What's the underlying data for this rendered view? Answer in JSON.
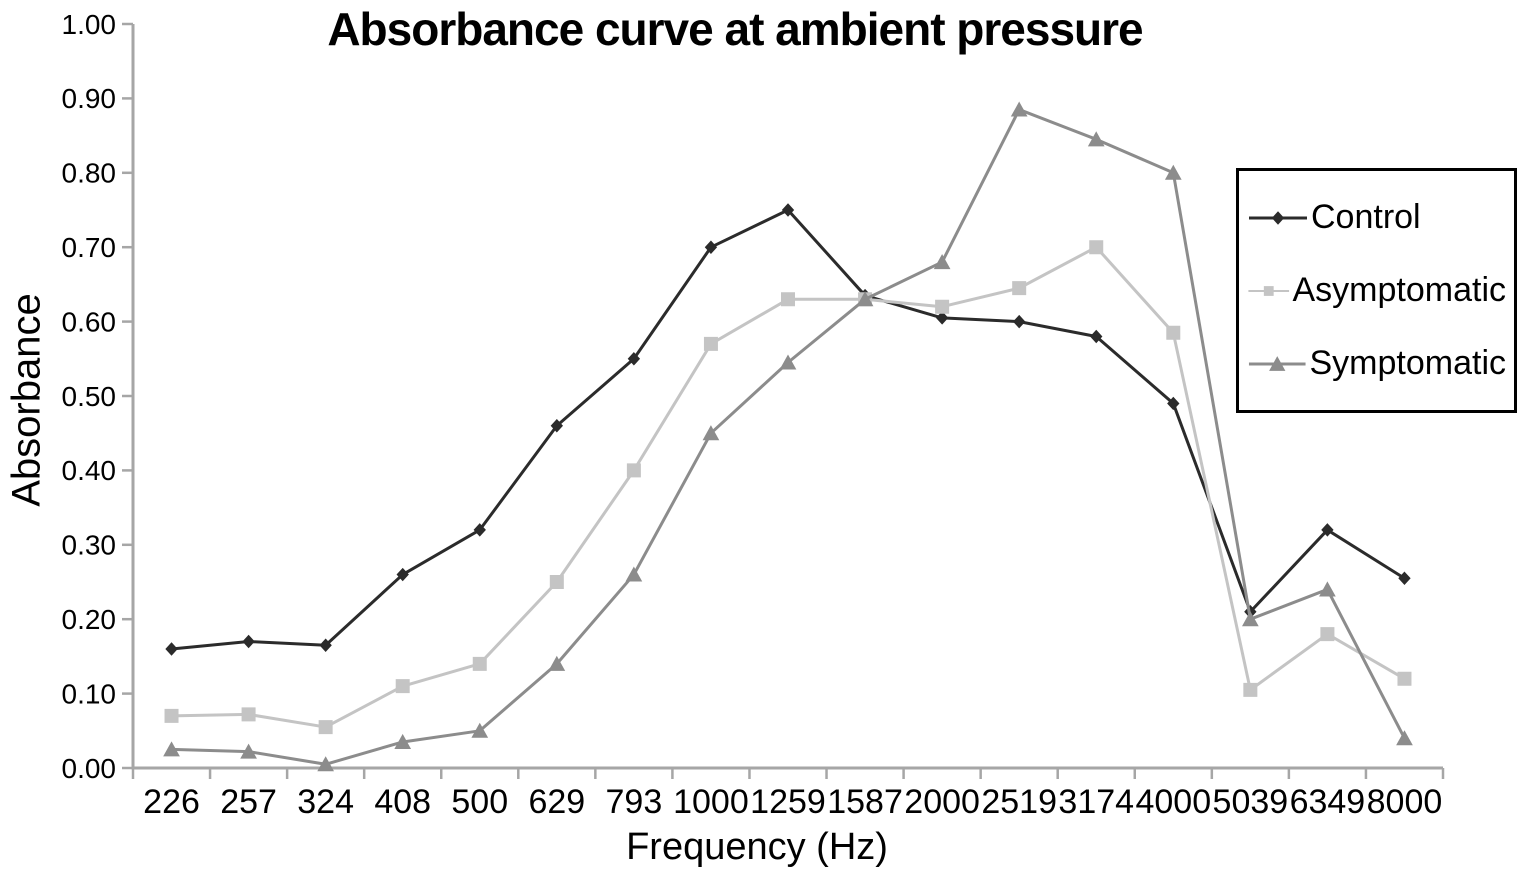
{
  "figure": {
    "background": "#ffffff",
    "text_color": "#000000",
    "axis_color": "#a6a6a6"
  },
  "chart_data": {
    "type": "line",
    "title": "Absorbance curve at ambient pressure",
    "xlabel": "Frequency (Hz)",
    "ylabel": "Absorbance",
    "categories": [
      "226",
      "257",
      "324",
      "408",
      "500",
      "629",
      "793",
      "1000",
      "1259",
      "1587",
      "2000",
      "2519",
      "3174",
      "4000",
      "5039",
      "6349",
      "8000"
    ],
    "series": [
      {
        "name": "Control",
        "marker": "diamond",
        "color": "#2b2b2b",
        "values": [
          0.16,
          0.17,
          0.165,
          0.26,
          0.32,
          0.46,
          0.55,
          0.7,
          0.75,
          0.635,
          0.605,
          0.6,
          0.58,
          0.49,
          0.21,
          0.32,
          0.255
        ]
      },
      {
        "name": "Asymptomatic",
        "marker": "square",
        "color": "#c4c4c4",
        "values": [
          0.07,
          0.072,
          0.055,
          0.11,
          0.14,
          0.25,
          0.4,
          0.57,
          0.63,
          0.63,
          0.62,
          0.645,
          0.7,
          0.585,
          0.105,
          0.18,
          0.12
        ]
      },
      {
        "name": "Symptomatic",
        "marker": "triangle",
        "color": "#8c8c8c",
        "values": [
          0.025,
          0.022,
          0.005,
          0.035,
          0.05,
          0.14,
          0.26,
          0.45,
          0.545,
          0.63,
          0.68,
          0.885,
          0.845,
          0.8,
          0.2,
          0.24,
          0.04
        ]
      }
    ],
    "ylim": [
      0,
      1
    ],
    "ytick_step": 0.1,
    "ytick_labels": [
      "0.00",
      "0.10",
      "0.20",
      "0.30",
      "0.40",
      "0.50",
      "0.60",
      "0.70",
      "0.80",
      "0.90",
      "1.00"
    ],
    "grid": false,
    "legend_position": "right-inside"
  }
}
